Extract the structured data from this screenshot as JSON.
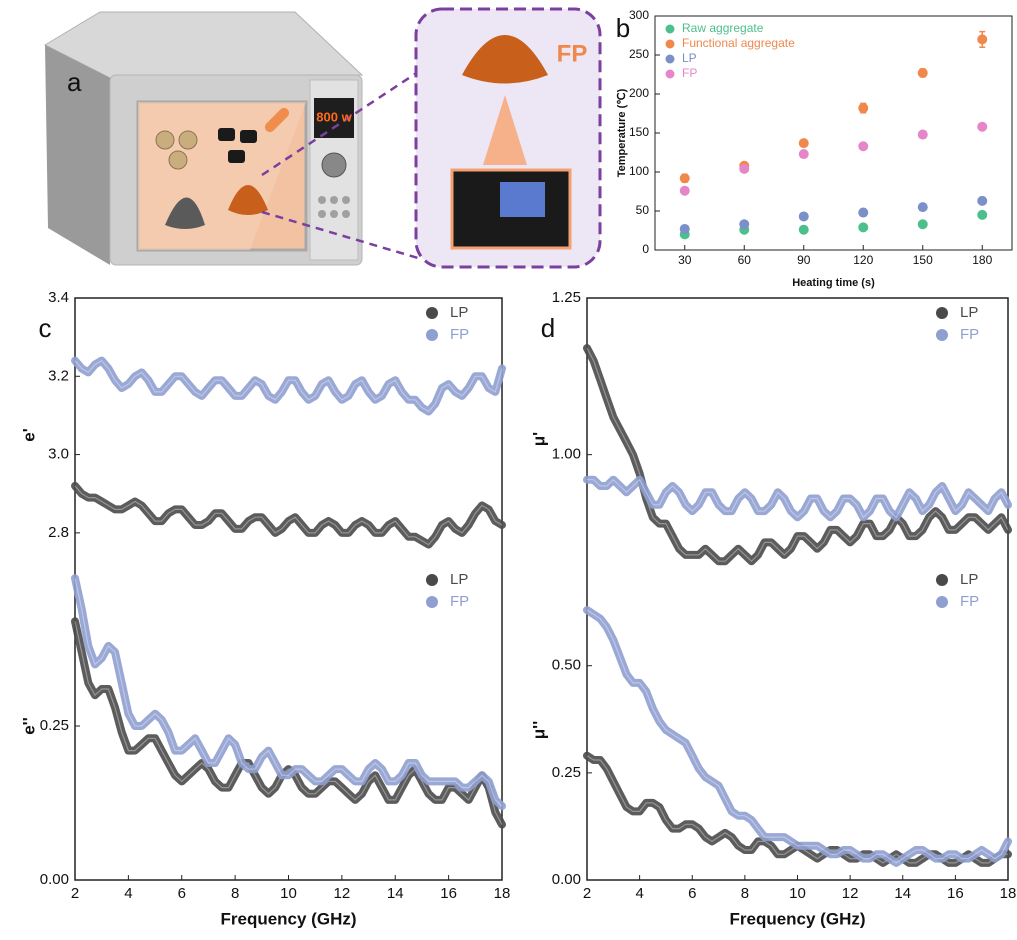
{
  "illustration": {
    "label": "a",
    "power": "800 w",
    "product": "FP"
  },
  "chart_data": [
    {
      "type": "scatter",
      "panel_label": "b",
      "xlabel": "Heating time (s)",
      "ylabel": "Temperature (℃)",
      "x": [
        30,
        60,
        90,
        120,
        150,
        180
      ],
      "xlim": [
        15,
        195
      ],
      "xticks": [
        30,
        60,
        90,
        120,
        150,
        180
      ],
      "ylim": [
        0,
        300
      ],
      "yticks": [
        0,
        50,
        100,
        150,
        200,
        250,
        300
      ],
      "legend": "upper left",
      "series": [
        {
          "name": "Raw aggregate",
          "color": "#4cbf8c",
          "values": [
            20,
            26,
            26,
            29,
            33,
            45
          ],
          "errors": [
            3,
            3,
            3,
            3,
            4,
            4
          ]
        },
        {
          "name": "Functional aggregate",
          "color": "#f0884c",
          "values": [
            92,
            108,
            137,
            182,
            227,
            270
          ],
          "errors": [
            5,
            3,
            4,
            6,
            5,
            10
          ]
        },
        {
          "name": "LP",
          "color": "#7b8fc8",
          "values": [
            27,
            33,
            43,
            48,
            55,
            63
          ],
          "errors": [
            2,
            2,
            2,
            2,
            2,
            2
          ]
        },
        {
          "name": "FP",
          "color": "#e586c8",
          "values": [
            76,
            104,
            123,
            133,
            148,
            158
          ],
          "errors": [
            3,
            3,
            3,
            3,
            2,
            2
          ]
        }
      ]
    },
    {
      "type": "line",
      "panel_label": "c",
      "ylabel": "e'",
      "x": [
        2,
        2.25,
        2.5,
        2.75,
        3,
        3.25,
        3.5,
        3.75,
        4,
        4.25,
        4.5,
        4.75,
        5,
        5.25,
        5.5,
        5.75,
        6,
        6.25,
        6.5,
        6.75,
        7,
        7.25,
        7.5,
        7.75,
        8,
        8.25,
        8.5,
        8.75,
        9,
        9.25,
        9.5,
        9.75,
        10,
        10.25,
        10.5,
        10.75,
        11,
        11.25,
        11.5,
        11.75,
        12,
        12.25,
        12.5,
        12.75,
        13,
        13.25,
        13.5,
        13.75,
        14,
        14.25,
        14.5,
        14.75,
        15,
        15.25,
        15.5,
        15.75,
        16,
        16.25,
        16.5,
        16.75,
        17,
        17.25,
        17.5,
        17.75,
        18
      ],
      "xlim": [
        2,
        18
      ],
      "ylim": [
        2.7,
        3.4
      ],
      "yticks": [
        2.8,
        {
          "value": 3.0,
          "label": "3.0"
        },
        3.2,
        3.4
      ],
      "legend": "upper right",
      "series": [
        {
          "name": "LP",
          "color": "#4a4a4a",
          "values": [
            2.92,
            2.9,
            2.89,
            2.89,
            2.88,
            2.87,
            2.86,
            2.86,
            2.87,
            2.88,
            2.87,
            2.85,
            2.83,
            2.83,
            2.85,
            2.86,
            2.86,
            2.84,
            2.82,
            2.82,
            2.83,
            2.85,
            2.85,
            2.83,
            2.81,
            2.81,
            2.83,
            2.84,
            2.84,
            2.82,
            2.8,
            2.81,
            2.83,
            2.84,
            2.82,
            2.8,
            2.8,
            2.82,
            2.83,
            2.82,
            2.8,
            2.8,
            2.82,
            2.83,
            2.82,
            2.8,
            2.8,
            2.82,
            2.83,
            2.81,
            2.79,
            2.79,
            2.78,
            2.77,
            2.79,
            2.82,
            2.83,
            2.81,
            2.8,
            2.82,
            2.85,
            2.87,
            2.86,
            2.83,
            2.82
          ]
        },
        {
          "name": "FP",
          "color": "#8f9fd0",
          "values": [
            3.24,
            3.22,
            3.21,
            3.23,
            3.24,
            3.22,
            3.19,
            3.17,
            3.18,
            3.2,
            3.21,
            3.19,
            3.16,
            3.16,
            3.18,
            3.2,
            3.2,
            3.18,
            3.16,
            3.15,
            3.17,
            3.19,
            3.19,
            3.17,
            3.15,
            3.15,
            3.17,
            3.19,
            3.18,
            3.15,
            3.14,
            3.16,
            3.19,
            3.19,
            3.16,
            3.14,
            3.15,
            3.18,
            3.19,
            3.16,
            3.14,
            3.15,
            3.18,
            3.19,
            3.16,
            3.14,
            3.15,
            3.18,
            3.19,
            3.16,
            3.14,
            3.14,
            3.12,
            3.11,
            3.13,
            3.17,
            3.18,
            3.16,
            3.15,
            3.17,
            3.2,
            3.2,
            3.17,
            3.16,
            3.22
          ]
        }
      ]
    },
    {
      "type": "line",
      "xlabel": "Frequency (GHz)",
      "ylabel": "e''",
      "x": [
        2,
        2.25,
        2.5,
        2.75,
        3,
        3.25,
        3.5,
        3.75,
        4,
        4.25,
        4.5,
        4.75,
        5,
        5.25,
        5.5,
        5.75,
        6,
        6.25,
        6.5,
        6.75,
        7,
        7.25,
        7.5,
        7.75,
        8,
        8.25,
        8.5,
        8.75,
        9,
        9.25,
        9.5,
        9.75,
        10,
        10.25,
        10.5,
        10.75,
        11,
        11.25,
        11.5,
        11.75,
        12,
        12.25,
        12.5,
        12.75,
        13,
        13.25,
        13.5,
        13.75,
        14,
        14.25,
        14.5,
        14.75,
        15,
        15.25,
        15.5,
        15.75,
        16,
        16.25,
        16.5,
        16.75,
        17,
        17.25,
        17.5,
        17.75,
        18
      ],
      "xlim": [
        2,
        18
      ],
      "xticks": [
        2,
        4,
        6,
        8,
        10,
        12,
        14,
        16,
        18
      ],
      "ylim": [
        0,
        0.5
      ],
      "yticks": [
        {
          "value": 0,
          "label": "0.00"
        },
        0.25
      ],
      "legend": "upper right",
      "series": [
        {
          "name": "LP",
          "color": "#4a4a4a",
          "values": [
            0.42,
            0.37,
            0.32,
            0.3,
            0.31,
            0.31,
            0.28,
            0.24,
            0.21,
            0.21,
            0.22,
            0.23,
            0.23,
            0.21,
            0.19,
            0.17,
            0.16,
            0.17,
            0.18,
            0.19,
            0.18,
            0.16,
            0.15,
            0.15,
            0.17,
            0.19,
            0.19,
            0.17,
            0.15,
            0.14,
            0.15,
            0.17,
            0.18,
            0.17,
            0.15,
            0.14,
            0.14,
            0.15,
            0.16,
            0.16,
            0.15,
            0.14,
            0.13,
            0.14,
            0.16,
            0.17,
            0.15,
            0.13,
            0.13,
            0.15,
            0.17,
            0.18,
            0.16,
            0.14,
            0.13,
            0.13,
            0.15,
            0.15,
            0.14,
            0.13,
            0.15,
            0.17,
            0.15,
            0.11,
            0.09
          ]
        },
        {
          "name": "FP",
          "color": "#8f9fd0",
          "values": [
            0.49,
            0.44,
            0.38,
            0.35,
            0.36,
            0.38,
            0.37,
            0.32,
            0.27,
            0.25,
            0.25,
            0.26,
            0.27,
            0.26,
            0.24,
            0.21,
            0.21,
            0.22,
            0.23,
            0.21,
            0.19,
            0.19,
            0.21,
            0.23,
            0.22,
            0.19,
            0.18,
            0.18,
            0.2,
            0.21,
            0.19,
            0.17,
            0.17,
            0.18,
            0.18,
            0.17,
            0.16,
            0.16,
            0.17,
            0.18,
            0.18,
            0.17,
            0.16,
            0.16,
            0.18,
            0.19,
            0.18,
            0.16,
            0.16,
            0.17,
            0.19,
            0.19,
            0.17,
            0.16,
            0.16,
            0.16,
            0.16,
            0.16,
            0.15,
            0.15,
            0.16,
            0.17,
            0.16,
            0.13,
            0.12
          ]
        }
      ]
    },
    {
      "type": "line",
      "panel_label": "d",
      "ylabel": "μ'",
      "x": [
        2,
        2.25,
        2.5,
        2.75,
        3,
        3.25,
        3.5,
        3.75,
        4,
        4.25,
        4.5,
        4.75,
        5,
        5.25,
        5.5,
        5.75,
        6,
        6.25,
        6.5,
        6.75,
        7,
        7.25,
        7.5,
        7.75,
        8,
        8.25,
        8.5,
        8.75,
        9,
        9.25,
        9.5,
        9.75,
        10,
        10.25,
        10.5,
        10.75,
        11,
        11.25,
        11.5,
        11.75,
        12,
        12.25,
        12.5,
        12.75,
        13,
        13.25,
        13.5,
        13.75,
        14,
        14.25,
        14.5,
        14.75,
        15,
        15.25,
        15.5,
        15.75,
        16,
        16.25,
        16.5,
        16.75,
        17,
        17.25,
        17.5,
        17.75,
        18
      ],
      "xlim": [
        2,
        18
      ],
      "ylim": [
        0.8,
        1.25
      ],
      "yticks": [
        {
          "value": 1.0,
          "label": "1.00"
        },
        1.25
      ],
      "legend": "upper right",
      "series": [
        {
          "name": "LP",
          "color": "#4a4a4a",
          "values": [
            1.17,
            1.15,
            1.12,
            1.09,
            1.06,
            1.04,
            1.02,
            1.0,
            0.97,
            0.93,
            0.9,
            0.89,
            0.89,
            0.87,
            0.85,
            0.84,
            0.84,
            0.84,
            0.85,
            0.84,
            0.83,
            0.83,
            0.84,
            0.85,
            0.84,
            0.83,
            0.84,
            0.86,
            0.86,
            0.85,
            0.84,
            0.85,
            0.87,
            0.87,
            0.86,
            0.85,
            0.86,
            0.88,
            0.88,
            0.87,
            0.86,
            0.87,
            0.89,
            0.89,
            0.87,
            0.87,
            0.88,
            0.9,
            0.89,
            0.87,
            0.87,
            0.88,
            0.9,
            0.91,
            0.9,
            0.88,
            0.88,
            0.89,
            0.9,
            0.9,
            0.89,
            0.88,
            0.89,
            0.9,
            0.88
          ]
        },
        {
          "name": "FP",
          "color": "#8f9fd0",
          "values": [
            0.96,
            0.96,
            0.95,
            0.95,
            0.96,
            0.95,
            0.94,
            0.95,
            0.96,
            0.94,
            0.92,
            0.92,
            0.94,
            0.95,
            0.94,
            0.92,
            0.91,
            0.92,
            0.94,
            0.94,
            0.92,
            0.91,
            0.91,
            0.93,
            0.94,
            0.93,
            0.91,
            0.91,
            0.92,
            0.94,
            0.93,
            0.91,
            0.9,
            0.91,
            0.93,
            0.93,
            0.91,
            0.9,
            0.91,
            0.93,
            0.93,
            0.92,
            0.9,
            0.91,
            0.93,
            0.93,
            0.91,
            0.9,
            0.92,
            0.94,
            0.93,
            0.91,
            0.92,
            0.94,
            0.95,
            0.93,
            0.91,
            0.92,
            0.94,
            0.93,
            0.92,
            0.91,
            0.93,
            0.94,
            0.92
          ]
        }
      ]
    },
    {
      "type": "line",
      "xlabel": "Frequency (GHz)",
      "ylabel": "μ''",
      "x": [
        2,
        2.25,
        2.5,
        2.75,
        3,
        3.25,
        3.5,
        3.75,
        4,
        4.25,
        4.5,
        4.75,
        5,
        5.25,
        5.5,
        5.75,
        6,
        6.25,
        6.5,
        6.75,
        7,
        7.25,
        7.5,
        7.75,
        8,
        8.25,
        8.5,
        8.75,
        9,
        9.25,
        9.5,
        9.75,
        10,
        10.25,
        10.5,
        10.75,
        11,
        11.25,
        11.5,
        11.75,
        12,
        12.25,
        12.5,
        12.75,
        13,
        13.25,
        13.5,
        13.75,
        14,
        14.25,
        14.5,
        14.75,
        15,
        15.25,
        15.5,
        15.75,
        16,
        16.25,
        16.5,
        16.75,
        17,
        17.25,
        17.5,
        17.75,
        18
      ],
      "xlim": [
        2,
        18
      ],
      "xticks": [
        2,
        4,
        6,
        8,
        10,
        12,
        14,
        16,
        18
      ],
      "ylim": [
        0,
        0.7
      ],
      "yticks": [
        {
          "value": 0,
          "label": "0.00"
        },
        0.25,
        {
          "value": 0.5,
          "label": "0.50"
        }
      ],
      "legend": "upper right",
      "series": [
        {
          "name": "LP",
          "color": "#4a4a4a",
          "values": [
            0.29,
            0.28,
            0.28,
            0.26,
            0.23,
            0.2,
            0.17,
            0.16,
            0.16,
            0.18,
            0.18,
            0.17,
            0.14,
            0.12,
            0.12,
            0.13,
            0.13,
            0.12,
            0.1,
            0.09,
            0.1,
            0.11,
            0.1,
            0.08,
            0.07,
            0.07,
            0.09,
            0.09,
            0.08,
            0.06,
            0.06,
            0.07,
            0.08,
            0.07,
            0.06,
            0.05,
            0.06,
            0.07,
            0.07,
            0.06,
            0.05,
            0.05,
            0.06,
            0.06,
            0.05,
            0.04,
            0.05,
            0.06,
            0.05,
            0.04,
            0.04,
            0.05,
            0.06,
            0.06,
            0.05,
            0.04,
            0.04,
            0.05,
            0.06,
            0.05,
            0.04,
            0.04,
            0.05,
            0.06,
            0.06
          ]
        },
        {
          "name": "FP",
          "color": "#8f9fd0",
          "values": [
            0.63,
            0.62,
            0.61,
            0.59,
            0.56,
            0.52,
            0.48,
            0.46,
            0.46,
            0.44,
            0.4,
            0.37,
            0.35,
            0.34,
            0.33,
            0.32,
            0.29,
            0.26,
            0.24,
            0.23,
            0.22,
            0.19,
            0.16,
            0.15,
            0.15,
            0.14,
            0.12,
            0.1,
            0.1,
            0.1,
            0.1,
            0.09,
            0.08,
            0.08,
            0.08,
            0.08,
            0.07,
            0.06,
            0.06,
            0.07,
            0.07,
            0.06,
            0.05,
            0.05,
            0.06,
            0.06,
            0.05,
            0.04,
            0.05,
            0.06,
            0.07,
            0.07,
            0.06,
            0.05,
            0.05,
            0.06,
            0.06,
            0.05,
            0.05,
            0.06,
            0.07,
            0.06,
            0.05,
            0.06,
            0.09
          ]
        }
      ]
    }
  ]
}
